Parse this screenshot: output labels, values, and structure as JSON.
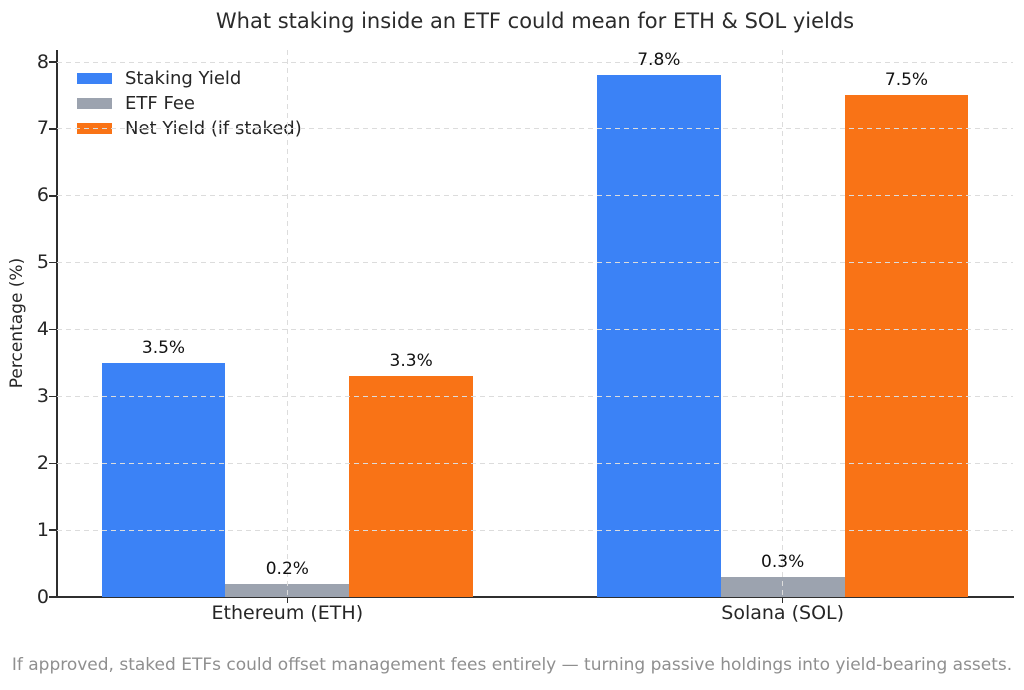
{
  "chart_data": {
    "type": "bar",
    "title": "What staking inside an ETF could mean for ETH & SOL yields",
    "categories": [
      "Ethereum (ETH)",
      "Solana (SOL)"
    ],
    "series": [
      {
        "name": "Staking Yield",
        "color": "#3b82f6",
        "values": [
          3.5,
          7.8
        ],
        "value_labels": [
          "3.5%",
          "7.8%"
        ]
      },
      {
        "name": "ETF Fee",
        "color": "#9ca3af",
        "values": [
          0.2,
          0.3
        ],
        "value_labels": [
          "0.2%",
          "0.3%"
        ]
      },
      {
        "name": "Net Yield (if staked)",
        "color": "#f97316",
        "values": [
          3.3,
          7.5
        ],
        "value_labels": [
          "3.3%",
          "7.5%"
        ]
      }
    ],
    "xlabel": "",
    "ylabel": "Percentage (%)",
    "yticks": [
      0,
      1,
      2,
      3,
      4,
      5,
      6,
      7,
      8
    ],
    "ylim": [
      0,
      8.18
    ],
    "grid": true,
    "grid_style": "dashed",
    "legend_position": "upper-left",
    "caption": "If approved, staked ETFs could offset management fees entirely — turning passive holdings into yield-bearing assets."
  },
  "colors": {
    "background": "#ffffff",
    "grid": "#dcdcdc",
    "axis": "#2f2f2f",
    "title_text": "#2b2b2b",
    "tick_text": "#262626",
    "value_label_text": "#111111",
    "footer_text": "#8f8f8f"
  }
}
